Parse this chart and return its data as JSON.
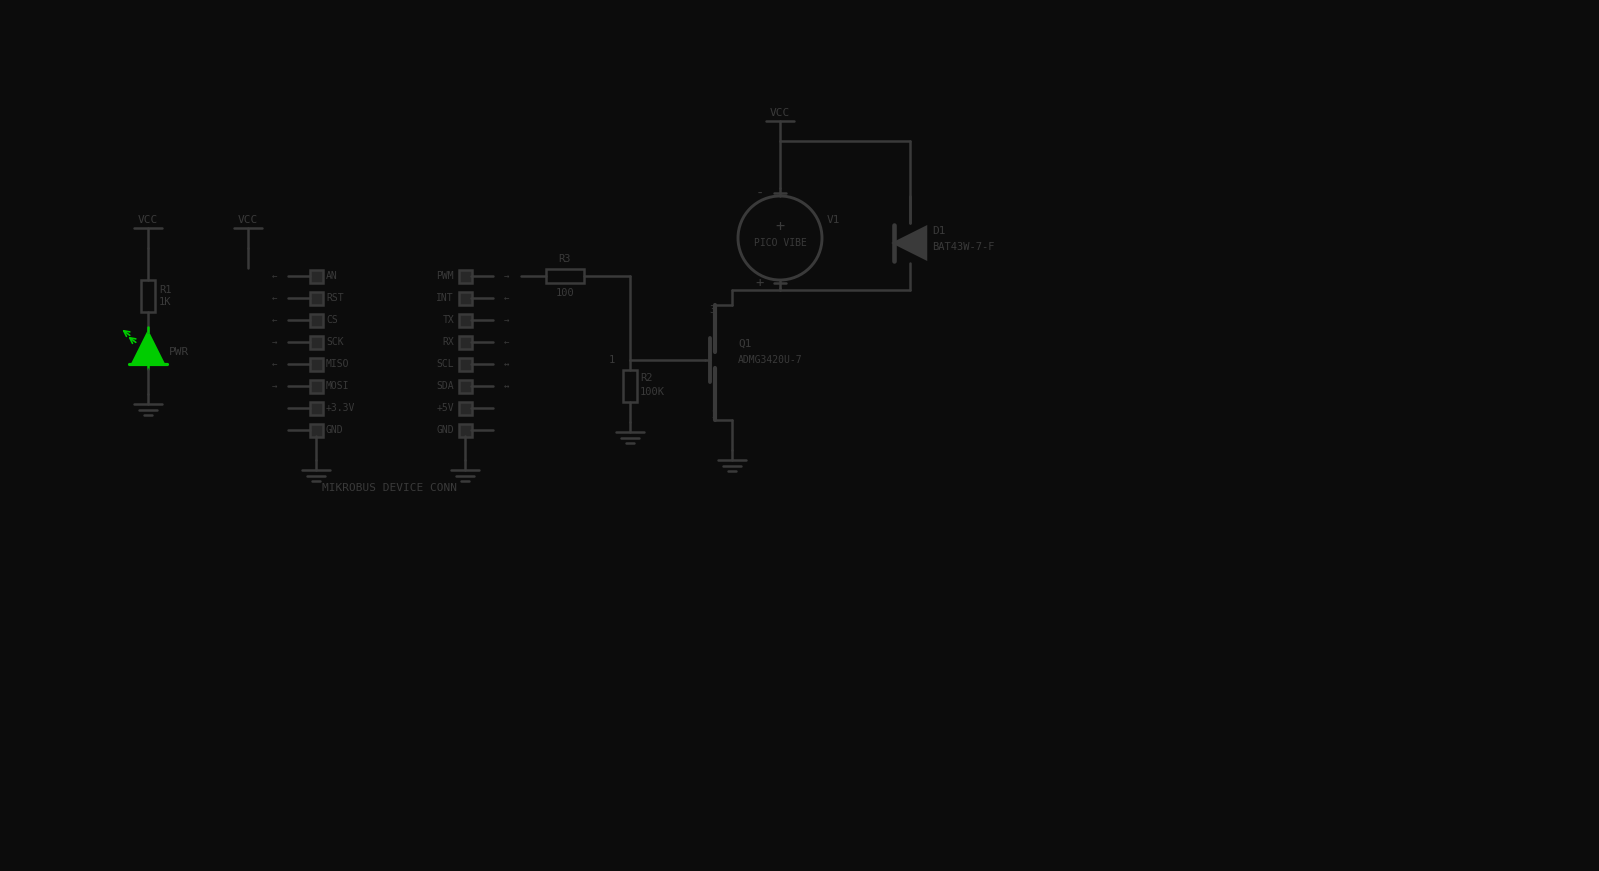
{
  "bg_color": "#0c0c0c",
  "wire_color": "#3a3a3a",
  "text_color": "#3a3a3a",
  "green_color": "#00cc00",
  "pin_fill": "#2a2a2a",
  "vcc_label": "VCC",
  "left_labels": [
    "AN",
    "RST",
    "CS",
    "SCK",
    "MISO",
    "MOSI",
    "+3.3V",
    "GND"
  ],
  "right_labels": [
    "PWM",
    "INT",
    "TX",
    "RX",
    "SCL",
    "SDA",
    "+5V",
    "GND"
  ],
  "left_arrows": [
    "←",
    "←",
    "←",
    "→",
    "←",
    "→",
    "",
    ""
  ],
  "right_arrows": [
    "→",
    "←",
    "→",
    "←",
    "↔",
    "↔",
    "",
    ""
  ],
  "conn_label": "MIKROBUS DEVICE CONN",
  "r1_label": "R1",
  "r1_val": "1K",
  "r2_label": "R2",
  "r2_val": "100K",
  "r3_label": "R3",
  "r3_val": "100",
  "q1_label": "Q1",
  "q1_val": "ADMG3420U-7",
  "d1_label": "D1",
  "d1_val": "BAT43W-7-F",
  "v1_label": "V1",
  "v1_text": "PICO VIBE",
  "pwr_label": "PWR"
}
